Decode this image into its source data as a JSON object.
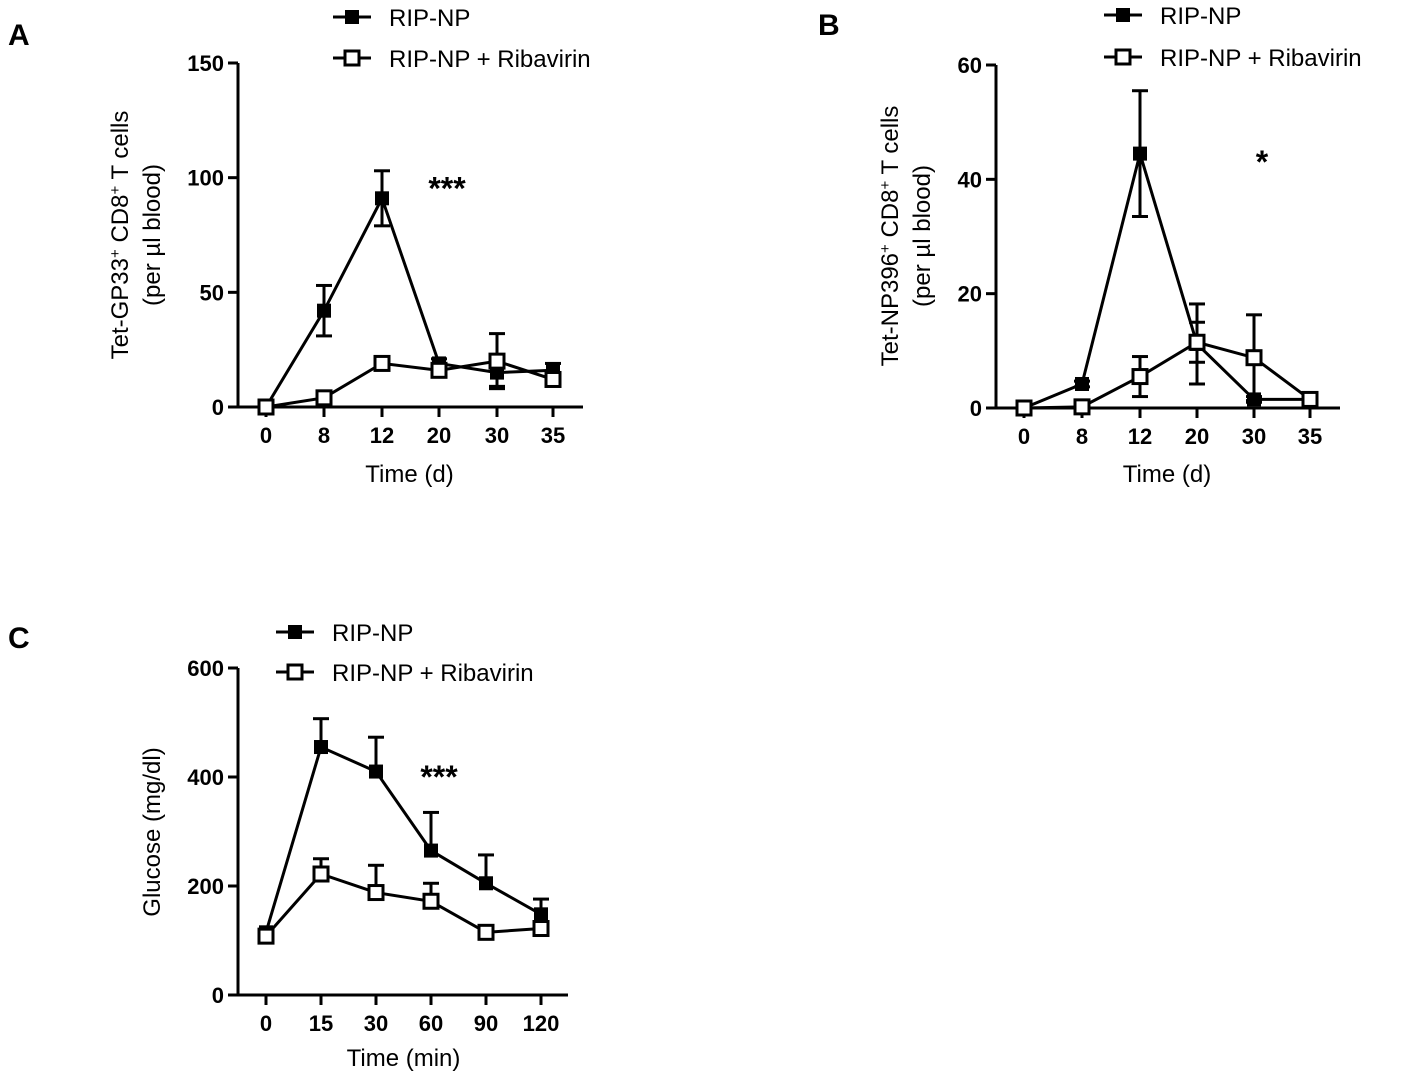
{
  "chart_data": [
    {
      "panel": "A",
      "type": "line",
      "ylabel_line1": "Tet-GP33",
      "ylabel_sup1": "+",
      "ylabel_mid": " CD8",
      "ylabel_sup2": "+",
      "ylabel_end": " T cells",
      "ylabel_line2": "(per µl blood)",
      "xlabel": "Time (d)",
      "categories": [
        "0",
        "8",
        "12",
        "20",
        "30",
        "35"
      ],
      "x": [
        0,
        8,
        12,
        20,
        30,
        35
      ],
      "ylim": [
        0,
        150
      ],
      "yticks": [
        0,
        50,
        100,
        150
      ],
      "annotation": "***",
      "annotation_at": [
        20,
        100
      ],
      "legend": [
        "RIP-NP",
        "RIP-NP + Ribavirin"
      ],
      "series": [
        {
          "name": "RIP-NP",
          "marker": "filled-square",
          "values": [
            0,
            42,
            91,
            19,
            15,
            16
          ],
          "errors": [
            0,
            11,
            12,
            2,
            6,
            3
          ]
        },
        {
          "name": "RIP-NP + Ribavirin",
          "marker": "open-square",
          "values": [
            0,
            4,
            19,
            16,
            20,
            12
          ],
          "errors": [
            0,
            1,
            1,
            2,
            12,
            2
          ]
        }
      ]
    },
    {
      "panel": "B",
      "type": "line",
      "ylabel_line1": "Tet-NP396",
      "ylabel_sup1": "+",
      "ylabel_mid": " CD8",
      "ylabel_sup2": "+",
      "ylabel_end": " T cells",
      "ylabel_line2": "(per µl blood)",
      "xlabel": "Time (d)",
      "categories": [
        "0",
        "8",
        "12",
        "20",
        "30",
        "35"
      ],
      "x": [
        0,
        8,
        12,
        20,
        30,
        35
      ],
      "ylim": [
        0,
        60
      ],
      "yticks": [
        0,
        20,
        40,
        60
      ],
      "annotation": "*",
      "annotation_at": [
        30,
        45
      ],
      "legend": [
        "RIP-NP",
        "RIP-NP + Ribavirin"
      ],
      "series": [
        {
          "name": "RIP-NP",
          "marker": "filled-square",
          "values": [
            0,
            4.2,
            44.5,
            11.2,
            1.5,
            1.5
          ],
          "errors": [
            0,
            0.5,
            11,
            7,
            0.5,
            0.5
          ]
        },
        {
          "name": "RIP-NP + Ribavirin",
          "marker": "open-square",
          "values": [
            0,
            0.2,
            5.5,
            11.5,
            8.8,
            1.5
          ],
          "errors": [
            0,
            0.2,
            3.5,
            3.5,
            7.5,
            0.5
          ]
        }
      ]
    },
    {
      "panel": "C",
      "type": "line",
      "ylabel_line1": "Glucose (mg/dl)",
      "xlabel": "Time (min)",
      "categories": [
        "0",
        "15",
        "30",
        "60",
        "90",
        "120"
      ],
      "x": [
        0,
        15,
        30,
        60,
        90,
        120
      ],
      "ylim": [
        0,
        600
      ],
      "yticks": [
        0,
        200,
        400,
        600
      ],
      "annotation": "***",
      "annotation_at": [
        60,
        420
      ],
      "legend": [
        "RIP-NP",
        "RIP-NP + Ribavirin"
      ],
      "series": [
        {
          "name": "RIP-NP",
          "marker": "filled-square",
          "values": [
            115,
            455,
            410,
            265,
            205,
            148
          ],
          "errors": [
            5,
            52,
            63,
            70,
            52,
            28
          ]
        },
        {
          "name": "RIP-NP + Ribavirin",
          "marker": "open-square",
          "values": [
            108,
            222,
            188,
            172,
            115,
            122
          ],
          "errors": [
            5,
            28,
            50,
            33,
            8,
            8
          ]
        }
      ]
    }
  ]
}
